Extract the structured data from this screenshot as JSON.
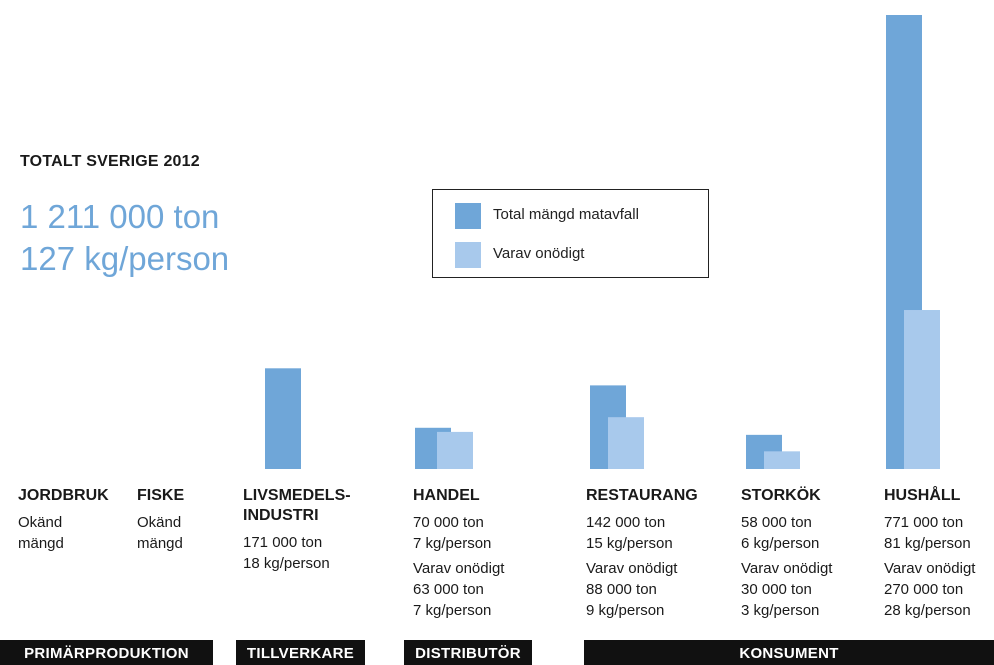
{
  "summary": {
    "title": "TOTALT SVERIGE 2012",
    "total_ton": "1 211 000 ton",
    "per_person": "127 kg/person"
  },
  "colors": {
    "total": "#6fa6d8",
    "unnecessary": "#a8c9ec",
    "stage_bar": "#111111"
  },
  "legend": {
    "total_label": "Total mängd matavfall",
    "unnecessary_label": "Varav onödigt"
  },
  "chart_data": {
    "type": "bar",
    "title": "TOTALT SVERIGE 2012",
    "categories": [
      "JORDBRUK",
      "FISKE",
      "LIVSMEDELS-INDUSTRI",
      "HANDEL",
      "RESTAURANG",
      "STORKÖK",
      "HUSHÅLL"
    ],
    "unit": "ton",
    "series": [
      {
        "name": "Total mängd matavfall",
        "values": [
          null,
          null,
          171000,
          70000,
          142000,
          58000,
          771000
        ]
      },
      {
        "name": "Varav onödigt",
        "values": [
          null,
          null,
          null,
          63000,
          88000,
          30000,
          270000
        ]
      }
    ],
    "ylim": [
      0,
      771000
    ],
    "grid": false,
    "legend_position": "top-center"
  },
  "columns": [
    {
      "heading": [
        "JORDBRUK"
      ],
      "lines": [
        "Okänd",
        "mängd"
      ],
      "unn_lines": []
    },
    {
      "heading": [
        "FISKE"
      ],
      "lines": [
        "Okänd",
        "mängd"
      ],
      "unn_lines": []
    },
    {
      "heading": [
        "LIVSMEDELS-",
        "INDUSTRI"
      ],
      "lines": [
        "171 000 ton",
        "18 kg/person"
      ],
      "unn_lines": []
    },
    {
      "heading": [
        "HANDEL"
      ],
      "lines": [
        "70 000 ton",
        "7 kg/person"
      ],
      "unn_lines": [
        "Varav onödigt",
        "63 000 ton",
        "7 kg/person"
      ]
    },
    {
      "heading": [
        "RESTAURANG"
      ],
      "lines": [
        "142 000 ton",
        "15 kg/person"
      ],
      "unn_lines": [
        "Varav onödigt",
        "88 000 ton",
        "9 kg/person"
      ]
    },
    {
      "heading": [
        "STORKÖK"
      ],
      "lines": [
        "58 000 ton",
        "6 kg/person"
      ],
      "unn_lines": [
        "Varav onödigt",
        "30 000 ton",
        "3 kg/person"
      ]
    },
    {
      "heading": [
        "HUSHÅLL"
      ],
      "lines": [
        "771 000 ton",
        "81 kg/person"
      ],
      "unn_lines": [
        "Varav onödigt",
        "270 000 ton",
        "28 kg/person"
      ]
    }
  ],
  "stages": [
    "PRIMÄRPRODUKTION",
    "TILLVERKARE",
    "DISTRIBUTÖR",
    "KONSUMENT"
  ]
}
